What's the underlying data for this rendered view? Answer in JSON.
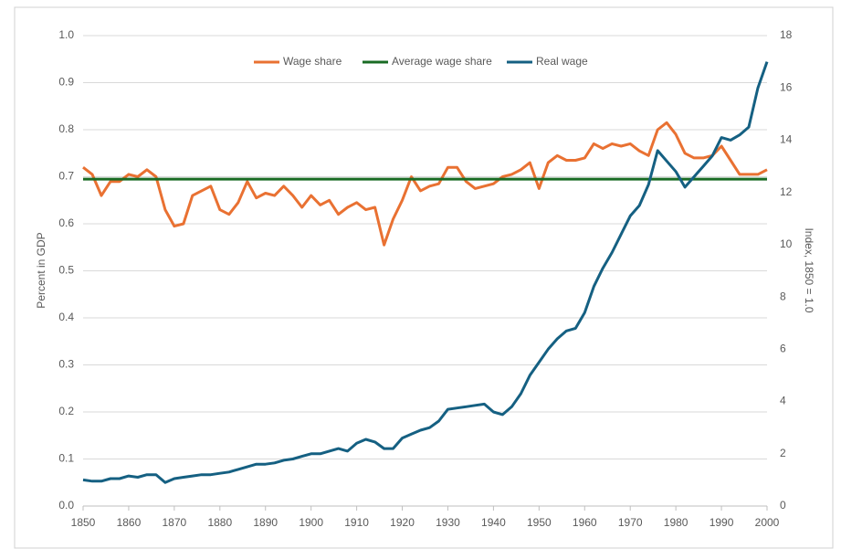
{
  "chart_data": {
    "type": "line",
    "ylabel": "Percent in GDP",
    "y2label": "Index, 1850 = 1.0",
    "x": [
      1850,
      1852,
      1854,
      1856,
      1858,
      1860,
      1862,
      1864,
      1866,
      1868,
      1870,
      1872,
      1874,
      1876,
      1878,
      1880,
      1882,
      1884,
      1886,
      1888,
      1890,
      1892,
      1894,
      1896,
      1898,
      1900,
      1902,
      1904,
      1906,
      1908,
      1910,
      1912,
      1914,
      1916,
      1918,
      1920,
      1922,
      1924,
      1926,
      1928,
      1930,
      1932,
      1934,
      1936,
      1938,
      1940,
      1942,
      1944,
      1946,
      1948,
      1950,
      1952,
      1954,
      1956,
      1958,
      1960,
      1962,
      1964,
      1966,
      1968,
      1970,
      1972,
      1974,
      1976,
      1978,
      1980,
      1982,
      1984,
      1986,
      1988,
      1990,
      1992,
      1994,
      1996,
      1998,
      2000
    ],
    "series": [
      {
        "name": "Wage share",
        "color": "#E97132",
        "axis": "y",
        "values": [
          0.72,
          0.705,
          0.66,
          0.69,
          0.69,
          0.705,
          0.7,
          0.715,
          0.7,
          0.63,
          0.595,
          0.6,
          0.66,
          0.67,
          0.68,
          0.63,
          0.62,
          0.645,
          0.69,
          0.655,
          0.665,
          0.66,
          0.68,
          0.66,
          0.635,
          0.66,
          0.64,
          0.65,
          0.62,
          0.635,
          0.645,
          0.63,
          0.635,
          0.555,
          0.61,
          0.65,
          0.7,
          0.67,
          0.68,
          0.685,
          0.72,
          0.72,
          0.69,
          0.675,
          0.68,
          0.685,
          0.7,
          0.705,
          0.715,
          0.73,
          0.675,
          0.73,
          0.745,
          0.735,
          0.735,
          0.74,
          0.77,
          0.76,
          0.77,
          0.765,
          0.77,
          0.755,
          0.745,
          0.8,
          0.815,
          0.79,
          0.75,
          0.74,
          0.74,
          0.745,
          0.765,
          0.735,
          0.705,
          0.705,
          0.705,
          0.715
        ]
      },
      {
        "name": "Average wage share",
        "color": "#196B24",
        "axis": "y",
        "x": [
          1850,
          2000
        ],
        "values": [
          0.695,
          0.695
        ]
      },
      {
        "name": "Real wage",
        "color": "#156082",
        "axis": "y2",
        "values": [
          1.0,
          0.95,
          0.95,
          1.05,
          1.05,
          1.15,
          1.1,
          1.2,
          1.2,
          0.9,
          1.05,
          1.1,
          1.15,
          1.2,
          1.2,
          1.25,
          1.3,
          1.4,
          1.5,
          1.6,
          1.6,
          1.65,
          1.75,
          1.8,
          1.9,
          2.0,
          2.0,
          2.1,
          2.2,
          2.1,
          2.4,
          2.55,
          2.45,
          2.2,
          2.2,
          2.6,
          2.75,
          2.9,
          3.0,
          3.25,
          3.7,
          3.75,
          3.8,
          3.85,
          3.9,
          3.6,
          3.5,
          3.8,
          4.3,
          5.0,
          5.5,
          6.0,
          6.4,
          6.7,
          6.8,
          7.4,
          8.4,
          9.1,
          9.7,
          10.4,
          11.1,
          11.5,
          12.3,
          13.6,
          13.2,
          12.8,
          12.2,
          12.6,
          13.0,
          13.4,
          14.1,
          14.0,
          14.2,
          14.5,
          16.0,
          17.0
        ]
      }
    ],
    "xlim": [
      1850,
      2000
    ],
    "xticks": [
      1850,
      1860,
      1870,
      1880,
      1890,
      1900,
      1910,
      1920,
      1930,
      1940,
      1950,
      1960,
      1970,
      1980,
      1990,
      2000
    ],
    "ylim": [
      0,
      1
    ],
    "yticks": [
      {
        "value": 0,
        "label": "0.0"
      },
      0.1,
      0.2,
      0.3,
      0.4,
      0.5,
      0.6,
      0.7,
      0.8,
      0.9,
      {
        "value": 1,
        "label": "1.0"
      }
    ],
    "y2lim": [
      0,
      18
    ],
    "y2ticks": [
      0,
      2,
      4,
      6,
      8,
      10,
      12,
      14,
      16,
      18
    ],
    "grid": true,
    "legend": "top"
  }
}
